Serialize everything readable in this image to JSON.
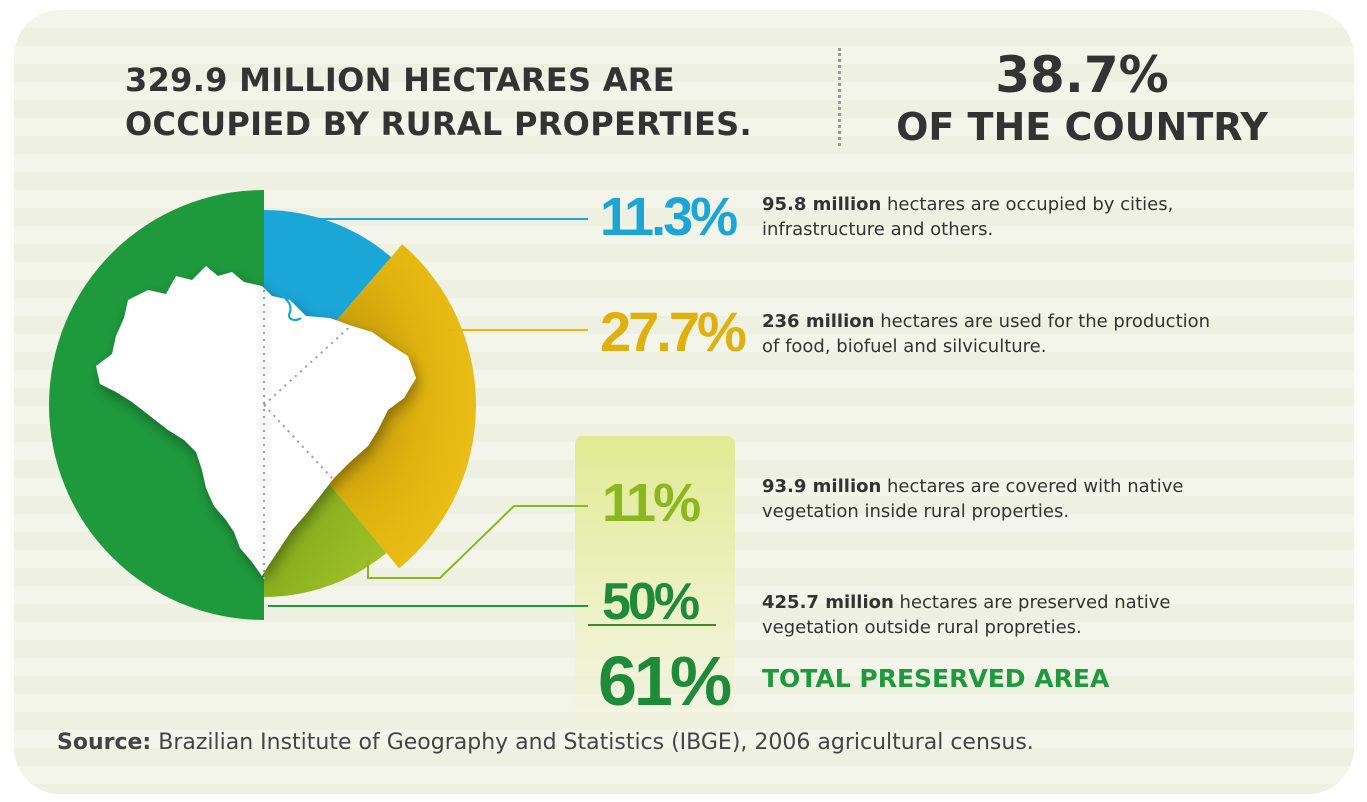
{
  "header": {
    "title_line1": "329.9 MILLION HECTARES ARE",
    "title_line2": "OCCUPIED BY RURAL PROPERTIES.",
    "country_pct": "38.7%",
    "country_label": "OF THE COUNTRY"
  },
  "colors": {
    "blue": "#1aa6d6",
    "gold": "#e5b80f",
    "lime": "#8bb81e",
    "green": "#1e9a3d",
    "panel": "#e1ea93"
  },
  "chart_data": {
    "type": "pie",
    "title": "329.9 MILLION HECTARES ARE OCCUPIED BY RURAL PROPERTIES.",
    "categories": [
      "Cities, infrastructure and others",
      "Food, biofuel and silviculture",
      "Native vegetation inside rural properties",
      "Preserved native vegetation outside rural properties"
    ],
    "values": [
      11.3,
      27.7,
      11,
      50
    ],
    "total_preserved": 61,
    "unit": "%"
  },
  "rows": [
    {
      "pct": "11.3%",
      "value_bold": "95.8 million",
      "text_line1": " hectares are occupied by cities,",
      "text_line2": "infrastructure and others."
    },
    {
      "pct": "27.7%",
      "value_bold": "236 million",
      "text_line1": " hectares are used for the production",
      "text_line2": "of food, biofuel and silviculture."
    },
    {
      "pct": "11%",
      "value_bold": "93.9 million",
      "text_line1": " hectares are covered with native",
      "text_line2": "vegetation inside rural properties."
    },
    {
      "pct": "50%",
      "value_bold": "425.7 million",
      "text_line1": " hectares are preserved native",
      "text_line2": "vegetation outside rural propreties."
    }
  ],
  "total": {
    "pct": "61%",
    "label": "TOTAL PRESERVED AREA"
  },
  "source": {
    "label": "Source:",
    "text": " Brazilian Institute of Geography and Statistics (IBGE), 2006 agricultural census."
  },
  "icons": {
    "map": "brazil-map-icon"
  }
}
